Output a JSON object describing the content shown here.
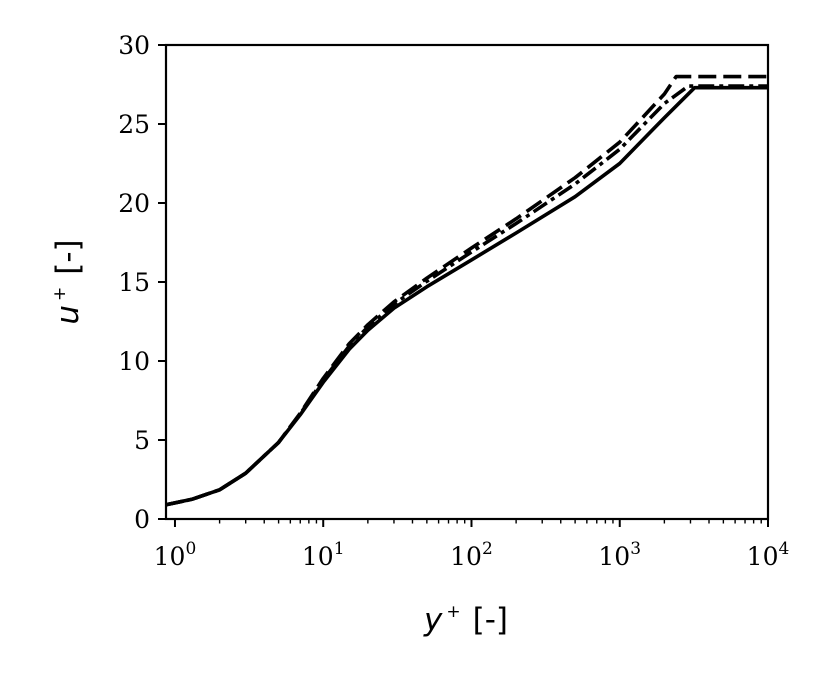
{
  "chart_data": {
    "type": "line",
    "title": "",
    "xlabel": {
      "var": "y",
      "sup": "+",
      "unit": "[-]"
    },
    "ylabel": {
      "var": "u",
      "sup": "+",
      "unit": "[-]"
    },
    "xscale": "log",
    "xlim": [
      0.87,
      10000
    ],
    "ylim": [
      0,
      30
    ],
    "grid": false,
    "legend": "none",
    "xticks": [
      {
        "value": 1,
        "base": "10",
        "exp": "0"
      },
      {
        "value": 10,
        "base": "10",
        "exp": "1"
      },
      {
        "value": 100,
        "base": "10",
        "exp": "2"
      },
      {
        "value": 1000,
        "base": "10",
        "exp": "3"
      },
      {
        "value": 10000,
        "base": "10",
        "exp": "4"
      }
    ],
    "yticks": [
      {
        "value": 0,
        "label": "0"
      },
      {
        "value": 5,
        "label": "5"
      },
      {
        "value": 10,
        "label": "10"
      },
      {
        "value": 15,
        "label": "15"
      },
      {
        "value": 20,
        "label": "20"
      },
      {
        "value": 25,
        "label": "25"
      },
      {
        "value": 30,
        "label": "30"
      }
    ],
    "series": [
      {
        "style": "solid",
        "color": "#000000",
        "x": [
          0.87,
          1.3,
          2,
          3,
          5,
          7,
          10,
          15,
          20,
          30,
          50,
          100,
          200,
          500,
          1000,
          2000,
          3200,
          10000
        ],
        "y": [
          0.9,
          1.25,
          1.85,
          2.9,
          4.85,
          6.6,
          8.65,
          10.75,
          11.95,
          13.35,
          14.7,
          16.4,
          18.1,
          20.4,
          22.5,
          25.4,
          27.3,
          27.3
        ]
      },
      {
        "style": "dashed",
        "color": "#000000",
        "x": [
          0.87,
          1.3,
          2,
          3,
          5,
          7,
          10,
          15,
          20,
          30,
          50,
          100,
          200,
          500,
          1000,
          2000,
          2400,
          10000
        ],
        "y": [
          0.9,
          1.25,
          1.85,
          2.9,
          4.85,
          6.7,
          8.9,
          11.1,
          12.3,
          13.75,
          15.25,
          17.15,
          19.0,
          21.6,
          23.85,
          26.9,
          28.0,
          28.0
        ]
      },
      {
        "style": "dashdot",
        "color": "#000000",
        "x": [
          0.87,
          1.3,
          2,
          3,
          5,
          7,
          10,
          15,
          20,
          30,
          50,
          100,
          200,
          500,
          1000,
          2000,
          2900,
          10000
        ],
        "y": [
          0.9,
          1.25,
          1.85,
          2.9,
          4.85,
          6.65,
          8.8,
          10.95,
          12.15,
          13.6,
          15.05,
          16.9,
          18.7,
          21.2,
          23.4,
          26.3,
          27.4,
          27.4
        ]
      }
    ]
  }
}
